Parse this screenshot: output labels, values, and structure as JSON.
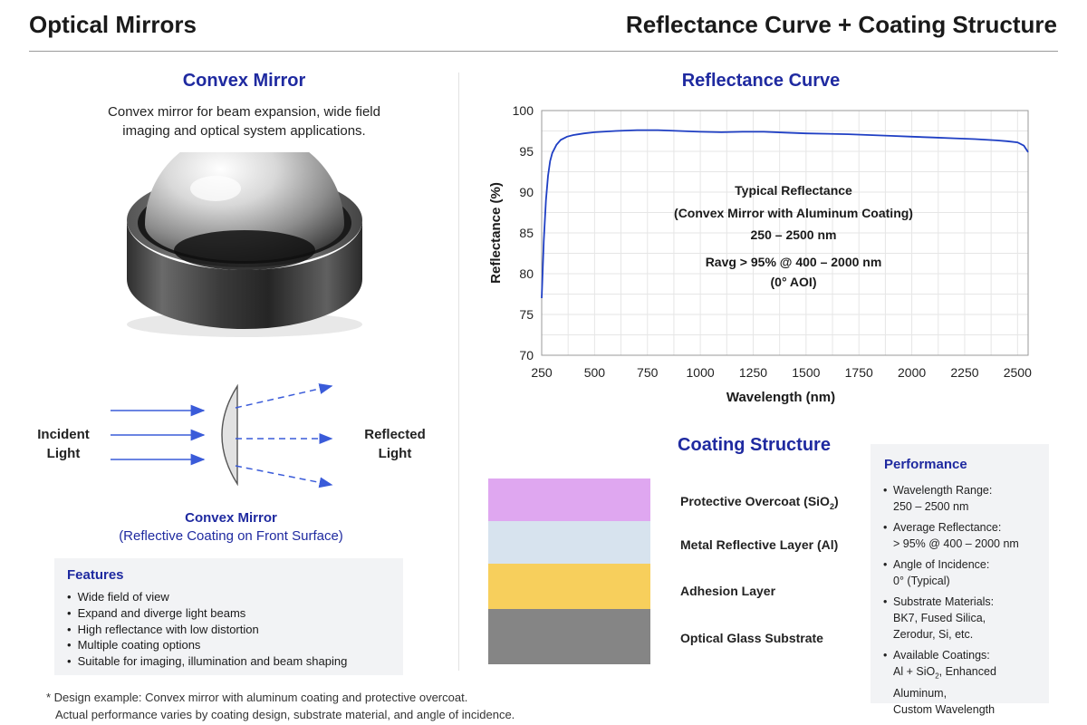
{
  "header": {
    "left_title": "Optical Mirrors",
    "right_title": "Reflectance Curve + Coating Structure"
  },
  "convex": {
    "title": "Convex Mirror",
    "description_line1": "Convex mirror for beam expansion, wide field",
    "description_line2": "imaging and optical system applications."
  },
  "diagram": {
    "incident_line1": "Incident",
    "incident_line2": "Light",
    "reflected_line1": "Reflected",
    "reflected_line2": "Light",
    "caption_line1": "Convex Mirror",
    "caption_line2": "(Reflective Coating on Front Surface)",
    "ray_color": "#3a5bd9"
  },
  "features": {
    "title": "Features",
    "items": [
      "Wide field of view",
      "Expand and diverge light beams",
      "High reflectance with low distortion",
      "Multiple coating options",
      "Suitable for imaging, illumination and beam shaping"
    ]
  },
  "footnote": {
    "line1": "* Design example: Convex mirror with aluminum coating and protective overcoat.",
    "line2": "Actual performance varies by coating design, substrate material, and angle of incidence."
  },
  "reflectance": {
    "title": "Reflectance Curve"
  },
  "chart_data": {
    "type": "line",
    "xlabel": "Wavelength (nm)",
    "ylabel": "Reflectance (%)",
    "xlim": [
      250,
      2550
    ],
    "ylim": [
      70,
      100
    ],
    "xticks": [
      250,
      500,
      750,
      1000,
      1250,
      1500,
      1750,
      2000,
      2250,
      2500
    ],
    "yticks": [
      70,
      75,
      80,
      85,
      90,
      95,
      100
    ],
    "grid": true,
    "line_color": "#1f3fc4",
    "series": [
      {
        "x": [
          250,
          260,
          270,
          280,
          290,
          300,
          320,
          340,
          370,
          400,
          450,
          500,
          600,
          700,
          800,
          900,
          1000,
          1100,
          1200,
          1300,
          1400,
          1500,
          1600,
          1700,
          1800,
          1900,
          2000,
          2100,
          2200,
          2300,
          2400,
          2450,
          2500,
          2530,
          2550
        ],
        "y": [
          77.0,
          84.0,
          89.0,
          92.0,
          93.8,
          94.8,
          95.8,
          96.4,
          96.8,
          97.0,
          97.2,
          97.35,
          97.5,
          97.6,
          97.6,
          97.5,
          97.4,
          97.35,
          97.4,
          97.4,
          97.3,
          97.2,
          97.15,
          97.1,
          97.0,
          96.9,
          96.8,
          96.7,
          96.6,
          96.5,
          96.35,
          96.25,
          96.1,
          95.7,
          94.9
        ]
      }
    ],
    "annotation": [
      "Typical Reflectance",
      "(Convex Mirror with Aluminum Coating)",
      "250 – 2500 nm",
      "Ravg > 95% @ 400 – 2000 nm",
      "(0° AOI)"
    ]
  },
  "coating": {
    "title": "Coating Structure",
    "layers": [
      {
        "label": "Protective Overcoat (SiO",
        "sub": "2",
        "label_end": ")",
        "color": "#dfa7f0"
      },
      {
        "label": "Metal Reflective Layer (Al)",
        "sub": "",
        "label_end": "",
        "color": "#d7e3ee"
      },
      {
        "label": "Adhesion Layer",
        "sub": "",
        "label_end": "",
        "color": "#f7cf5c"
      },
      {
        "label": "Optical Glass Substrate",
        "sub": "",
        "label_end": "",
        "color": "#858585"
      }
    ]
  },
  "performance": {
    "title": "Performance",
    "items": [
      {
        "name": "Wavelength Range:",
        "value": "250 – 2500 nm"
      },
      {
        "name": "Average Reflectance:",
        "value": "> 95% @ 400 – 2000 nm"
      },
      {
        "name": "Angle of Incidence:",
        "value": "0° (Typical)"
      },
      {
        "name": "Substrate Materials:",
        "value": "BK7, Fused Silica,",
        "value2": "Zerodur, Si, etc."
      },
      {
        "name": "Available Coatings:",
        "value": "Al + SiO",
        "sub": "2",
        "value_end": ", Enhanced Aluminum,",
        "value2": "Custom Wavelength"
      }
    ]
  }
}
